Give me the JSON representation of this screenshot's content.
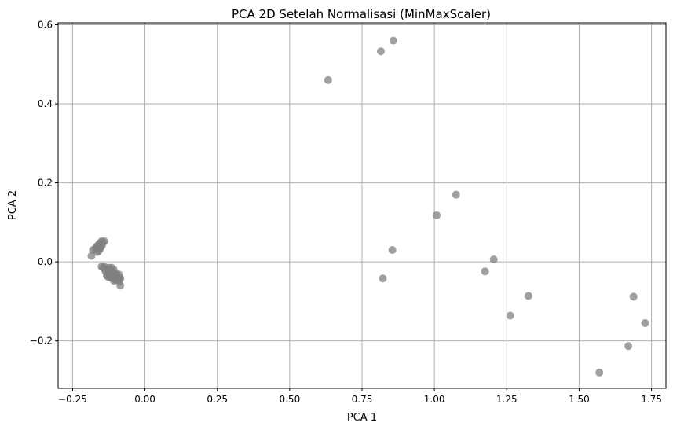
{
  "chart_data": {
    "type": "scatter",
    "title": "PCA 2D Setelah Normalisasi (MinMaxScaler)",
    "xlabel": "PCA 1",
    "ylabel": "PCA 2",
    "xlim": [
      -0.3,
      1.8
    ],
    "ylim": [
      -0.32,
      0.605
    ],
    "xticks": [
      -0.25,
      0.0,
      0.25,
      0.5,
      0.75,
      1.0,
      1.25,
      1.5,
      1.75
    ],
    "xtick_labels": [
      "−0.25",
      "0.00",
      "0.25",
      "0.50",
      "0.75",
      "1.00",
      "1.25",
      "1.50",
      "1.75"
    ],
    "yticks": [
      -0.2,
      0.0,
      0.2,
      0.4,
      0.6
    ],
    "ytick_labels": [
      "−0.2",
      "0.0",
      "0.2",
      "0.4",
      "0.6"
    ],
    "grid": true,
    "marker_color": "#808080",
    "points": [
      {
        "x": 0.633,
        "y": 0.46
      },
      {
        "x": 0.815,
        "y": 0.533
      },
      {
        "x": 0.858,
        "y": 0.56
      },
      {
        "x": 1.075,
        "y": 0.17
      },
      {
        "x": 1.008,
        "y": 0.118
      },
      {
        "x": 0.855,
        "y": 0.03
      },
      {
        "x": 0.822,
        "y": -0.042
      },
      {
        "x": 1.205,
        "y": 0.006
      },
      {
        "x": 1.175,
        "y": -0.024
      },
      {
        "x": 1.325,
        "y": -0.086
      },
      {
        "x": 1.262,
        "y": -0.136
      },
      {
        "x": 1.688,
        "y": -0.088
      },
      {
        "x": 1.728,
        "y": -0.155
      },
      {
        "x": 1.67,
        "y": -0.213
      },
      {
        "x": 1.57,
        "y": -0.28
      },
      {
        "x": -0.185,
        "y": 0.015
      },
      {
        "x": -0.18,
        "y": 0.03
      },
      {
        "x": -0.172,
        "y": 0.032
      },
      {
        "x": -0.168,
        "y": 0.038
      },
      {
        "x": -0.162,
        "y": 0.042
      },
      {
        "x": -0.155,
        "y": 0.048
      },
      {
        "x": -0.15,
        "y": 0.052
      },
      {
        "x": -0.145,
        "y": 0.05
      },
      {
        "x": -0.14,
        "y": 0.052
      },
      {
        "x": -0.16,
        "y": 0.028
      },
      {
        "x": -0.155,
        "y": 0.033
      },
      {
        "x": -0.152,
        "y": 0.038
      },
      {
        "x": -0.148,
        "y": 0.042
      },
      {
        "x": -0.158,
        "y": 0.045
      },
      {
        "x": -0.165,
        "y": 0.025
      },
      {
        "x": -0.15,
        "y": -0.012
      },
      {
        "x": -0.145,
        "y": -0.015
      },
      {
        "x": -0.14,
        "y": -0.012
      },
      {
        "x": -0.138,
        "y": -0.02
      },
      {
        "x": -0.135,
        "y": -0.025
      },
      {
        "x": -0.13,
        "y": -0.018
      },
      {
        "x": -0.128,
        "y": -0.03
      },
      {
        "x": -0.125,
        "y": -0.015
      },
      {
        "x": -0.122,
        "y": -0.035
      },
      {
        "x": -0.12,
        "y": -0.022
      },
      {
        "x": -0.118,
        "y": -0.04
      },
      {
        "x": -0.115,
        "y": -0.015
      },
      {
        "x": -0.112,
        "y": -0.028
      },
      {
        "x": -0.11,
        "y": -0.042
      },
      {
        "x": -0.108,
        "y": -0.02
      },
      {
        "x": -0.105,
        "y": -0.035
      },
      {
        "x": -0.102,
        "y": -0.045
      },
      {
        "x": -0.1,
        "y": -0.03
      },
      {
        "x": -0.098,
        "y": -0.04
      },
      {
        "x": -0.095,
        "y": -0.035
      },
      {
        "x": -0.092,
        "y": -0.042
      },
      {
        "x": -0.09,
        "y": -0.045
      },
      {
        "x": -0.088,
        "y": -0.05
      },
      {
        "x": -0.085,
        "y": -0.06
      },
      {
        "x": -0.085,
        "y": -0.042
      },
      {
        "x": -0.09,
        "y": -0.032
      },
      {
        "x": -0.132,
        "y": -0.035
      },
      {
        "x": -0.127,
        "y": -0.038
      },
      {
        "x": -0.117,
        "y": -0.025
      },
      {
        "x": -0.107,
        "y": -0.048
      }
    ]
  }
}
